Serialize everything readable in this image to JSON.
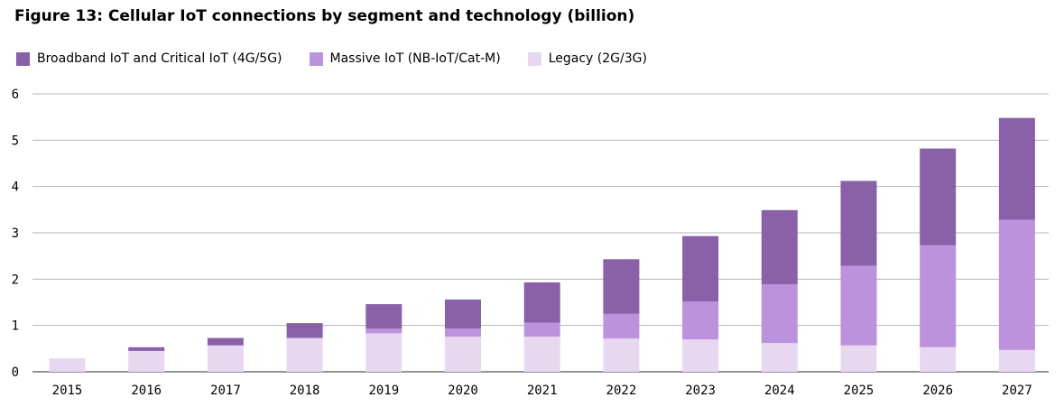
{
  "title": "Figure 13: Cellular IoT connections by segment and technology (billion)",
  "chart_data": {
    "type": "bar",
    "stacked": true,
    "categories": [
      "2015",
      "2016",
      "2017",
      "2018",
      "2019",
      "2020",
      "2021",
      "2022",
      "2023",
      "2024",
      "2025",
      "2026",
      "2027"
    ],
    "series": [
      {
        "name": "Legacy (2G/3G)",
        "color": "#e8d7f1",
        "values": [
          0.29,
          0.45,
          0.57,
          0.73,
          0.83,
          0.76,
          0.76,
          0.72,
          0.7,
          0.62,
          0.57,
          0.53,
          0.47
        ]
      },
      {
        "name": "Massive IoT (NB-IoT/Cat-M)",
        "color": "#bd92dd",
        "values": [
          0.0,
          0.0,
          0.0,
          0.0,
          0.1,
          0.17,
          0.3,
          0.53,
          0.82,
          1.27,
          1.72,
          2.2,
          2.81
        ]
      },
      {
        "name": "Broadband IoT and Critical IoT (4G/5G)",
        "color": "#8a60a8",
        "values": [
          0.0,
          0.08,
          0.16,
          0.32,
          0.53,
          0.63,
          0.87,
          1.18,
          1.41,
          1.6,
          1.83,
          2.09,
          2.2
        ]
      }
    ],
    "legend_order": [
      "Broadband IoT and Critical IoT (4G/5G)",
      "Massive IoT (NB-IoT/Cat-M)",
      "Legacy (2G/3G)"
    ],
    "yticks": [
      "0",
      "1",
      "2",
      "3",
      "4",
      "5",
      "6"
    ],
    "ylim": [
      0,
      6
    ],
    "grid": true,
    "legend_position": "top-left"
  }
}
